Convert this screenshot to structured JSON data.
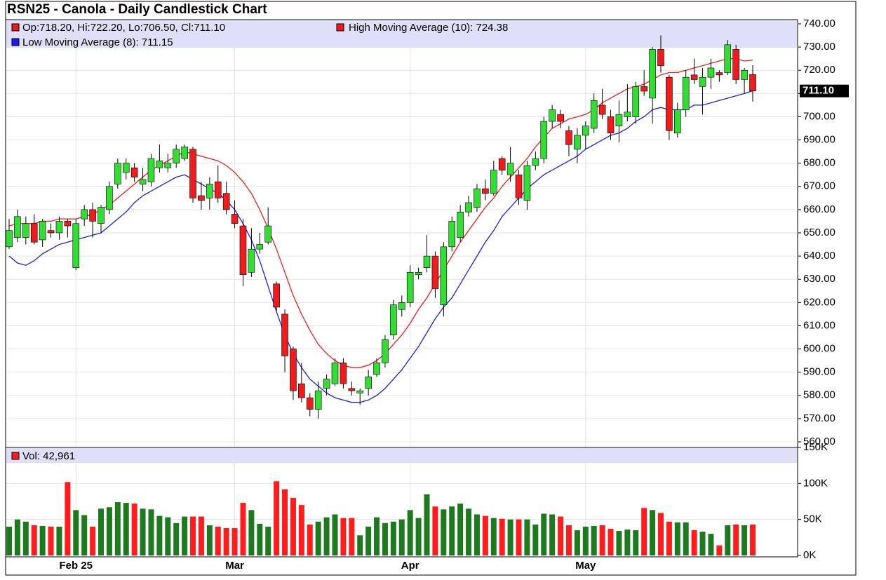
{
  "chart_data": [
    {
      "type": "candlestick",
      "title": "RSN25 - Canola - Daily Candlestick Chart",
      "ohlc_label": "Op:718.20, Hi:722.20, Lo:706.50, Cl:711.10",
      "last_label": "711.10",
      "up_color": "#33dd33",
      "down_color": "#ee1c1c",
      "categories": [
        null,
        null,
        null,
        null,
        null,
        null,
        null,
        null,
        "Feb 25",
        null,
        null,
        null,
        null,
        null,
        null,
        null,
        null,
        null,
        null,
        null,
        null,
        null,
        null,
        null,
        null,
        null,
        null,
        "Mar",
        null,
        null,
        null,
        null,
        null,
        null,
        null,
        null,
        null,
        null,
        null,
        null,
        null,
        null,
        null,
        null,
        null,
        null,
        null,
        null,
        "Apr",
        null,
        null,
        null,
        null,
        null,
        null,
        null,
        null,
        null,
        null,
        null,
        null,
        null,
        null,
        null,
        null,
        null,
        null,
        null,
        null,
        "May",
        null,
        null,
        null,
        null,
        null,
        null,
        null,
        null,
        null,
        null,
        null,
        null,
        null,
        null,
        null,
        null,
        null,
        null,
        null,
        null
      ],
      "open": [
        644,
        648,
        648,
        654,
        647,
        651,
        650,
        655,
        635,
        656,
        660,
        654,
        660,
        671,
        676,
        678,
        671,
        672,
        678,
        678,
        680,
        682,
        686,
        666,
        665,
        672,
        667,
        658,
        653,
        633,
        643,
        646,
        628,
        615,
        600,
        585,
        579,
        574,
        583,
        585,
        594,
        583,
        581,
        583,
        589,
        594,
        606,
        617,
        620,
        632,
        635,
        640,
        619,
        644,
        648,
        659,
        661,
        669,
        667,
        682,
        675,
        675,
        664,
        679,
        682,
        698,
        701,
        694,
        686,
        692,
        695,
        705,
        700,
        696,
        700,
        700,
        713,
        708,
        729,
        717,
        693,
        703,
        718,
        713,
        717,
        719,
        719,
        729,
        716,
        718.2
      ],
      "high": [
        656,
        660,
        657,
        658,
        656,
        654,
        657,
        656,
        656,
        662,
        663,
        662,
        672,
        682,
        682,
        680,
        678,
        684,
        688,
        684,
        688,
        688,
        687,
        672,
        674,
        679,
        672,
        664,
        656,
        652,
        650,
        661,
        629,
        617,
        601,
        594,
        581,
        586,
        589,
        596,
        596,
        586,
        583,
        591,
        596,
        606,
        621,
        623,
        636,
        635,
        649,
        642,
        646,
        657,
        662,
        666,
        671,
        673,
        681,
        683,
        687,
        677,
        681,
        685,
        700,
        705,
        703,
        696,
        695,
        698,
        710,
        712,
        703,
        707,
        714,
        715,
        720,
        730,
        735,
        718,
        706,
        720,
        725,
        721,
        725,
        720,
        733,
        731,
        721,
        722.2
      ],
      "low": [
        643,
        646,
        645,
        645,
        644,
        648,
        647,
        648,
        634,
        653,
        648,
        650,
        658,
        669,
        673,
        672,
        668,
        670,
        676,
        676,
        678,
        681,
        663,
        660,
        660,
        663,
        658,
        652,
        627,
        631,
        641,
        645,
        616,
        590,
        578,
        577,
        571,
        570,
        580,
        584,
        583,
        580,
        576,
        580,
        588,
        592,
        604,
        614,
        618,
        630,
        633,
        622,
        614,
        642,
        646,
        657,
        659,
        664,
        666,
        675,
        672,
        662,
        660,
        677,
        680,
        695,
        695,
        683,
        680,
        686,
        693,
        699,
        690,
        689,
        698,
        697,
        709,
        697,
        719,
        690,
        691,
        700,
        714,
        701,
        712,
        715,
        718,
        714,
        710,
        706.5
      ],
      "close": [
        651,
        657,
        654,
        646,
        655,
        650,
        655,
        653,
        654,
        660,
        655,
        661,
        670,
        680,
        680,
        674,
        673,
        682,
        681,
        680,
        686,
        687,
        665,
        664,
        671,
        665,
        660,
        654,
        632,
        643,
        645,
        653,
        618,
        597,
        582,
        579,
        574,
        582,
        587,
        594,
        585,
        582,
        582,
        588,
        594,
        604,
        619,
        620,
        633,
        633,
        640,
        626,
        644,
        655,
        659,
        663,
        669,
        667,
        677,
        677,
        680,
        665,
        679,
        682,
        698,
        703,
        698,
        688,
        692,
        696,
        707,
        701,
        693,
        701,
        702,
        713,
        711,
        729,
        722,
        694,
        703,
        717,
        716,
        717,
        721,
        718,
        731,
        716,
        720,
        711.1
      ],
      "series": [
        {
          "name": "High Moving Average (10): 724.38",
          "color": "#ee1c1c",
          "values": [
            653,
            654,
            654,
            654,
            655,
            655,
            656,
            656,
            656,
            657,
            658,
            660,
            662,
            665,
            668,
            671,
            674,
            677,
            679,
            681,
            683,
            685,
            684,
            683,
            682,
            681,
            679,
            676,
            672,
            667,
            660,
            652,
            643,
            633,
            623,
            615,
            608,
            602,
            598,
            595,
            593,
            592,
            592,
            593,
            595,
            598,
            602,
            606,
            611,
            617,
            622,
            628,
            634,
            640,
            646,
            651,
            656,
            661,
            665,
            670,
            674,
            678,
            682,
            687,
            691,
            695,
            697,
            699,
            700,
            701,
            703,
            706,
            708,
            710,
            712,
            713,
            714,
            716,
            718,
            719,
            719,
            720,
            721,
            722,
            723,
            724,
            725,
            725,
            724,
            724.38
          ]
        },
        {
          "name": "Low Moving Average (8): 711.15",
          "color": "#1c1cee",
          "values": [
            640,
            637,
            636,
            638,
            641,
            643,
            645,
            646,
            647,
            648,
            649,
            650,
            653,
            656,
            659,
            663,
            666,
            668,
            670,
            672,
            674,
            675,
            673,
            671,
            669,
            667,
            664,
            660,
            654,
            647,
            638,
            627,
            616,
            606,
            598,
            592,
            587,
            584,
            581,
            579,
            578,
            577,
            577,
            578,
            580,
            583,
            587,
            591,
            596,
            601,
            607,
            613,
            618,
            622,
            628,
            634,
            640,
            646,
            651,
            657,
            661,
            665,
            669,
            672,
            675,
            677,
            679,
            681,
            683,
            686,
            688,
            690,
            692,
            693,
            695,
            698,
            700,
            703,
            704,
            703,
            703,
            703,
            705,
            705,
            706,
            707,
            708,
            709,
            710,
            711.15
          ]
        }
      ],
      "ylim": [
        560,
        740
      ],
      "yticks": [
        {
          "value": 560,
          "label": "560.00"
        },
        {
          "value": 570,
          "label": "570.00"
        },
        {
          "value": 580,
          "label": "580.00"
        },
        {
          "value": 590,
          "label": "590.00"
        },
        {
          "value": 600,
          "label": "600.00"
        },
        {
          "value": 610,
          "label": "610.00"
        },
        {
          "value": 620,
          "label": "620.00"
        },
        {
          "value": 630,
          "label": "630.00"
        },
        {
          "value": 640,
          "label": "640.00"
        },
        {
          "value": 650,
          "label": "650.00"
        },
        {
          "value": 660,
          "label": "660.00"
        },
        {
          "value": 670,
          "label": "670.00"
        },
        {
          "value": 680,
          "label": "680.00"
        },
        {
          "value": 690,
          "label": "690.00"
        },
        {
          "value": 700,
          "label": "700.00"
        },
        {
          "value": 710,
          "label": "710.00"
        },
        {
          "value": 720,
          "label": "720.00"
        },
        {
          "value": 730,
          "label": "730.00"
        },
        {
          "value": 740,
          "label": "740.00"
        }
      ],
      "grid": true
    },
    {
      "type": "bar",
      "legend": "Vol: 42,961",
      "up_color": "#1e7a1e",
      "down_color": "#ff1c1c",
      "values": [
        40000,
        50000,
        47000,
        42000,
        41000,
        40000,
        40000,
        102000,
        63000,
        56000,
        40000,
        65000,
        67000,
        74000,
        73000,
        72000,
        65000,
        64000,
        55000,
        53000,
        45000,
        54000,
        54000,
        54000,
        42000,
        40000,
        38000,
        38000,
        73000,
        63000,
        44000,
        40000,
        103000,
        92000,
        80000,
        70000,
        43000,
        47000,
        53000,
        57000,
        52000,
        52000,
        28000,
        40000,
        53000,
        45000,
        47000,
        50000,
        63000,
        52000,
        85000,
        68000,
        64000,
        68000,
        72000,
        65000,
        57000,
        55000,
        52000,
        51000,
        50000,
        50000,
        50000,
        43000,
        58000,
        57000,
        54000,
        42000,
        35000,
        40000,
        41000,
        42000,
        37000,
        34000,
        36000,
        35000,
        66000,
        63000,
        59000,
        47000,
        46000,
        46000,
        35000,
        33000,
        30000,
        14000,
        42000,
        43000,
        42000,
        42961
      ],
      "ylim": [
        0,
        150000
      ],
      "yticks": [
        {
          "value": 0,
          "label": "0K"
        },
        {
          "value": 50000,
          "label": "50K"
        },
        {
          "value": 100000,
          "label": "100K"
        },
        {
          "value": 150000,
          "label": "150K"
        }
      ],
      "grid": true
    }
  ]
}
